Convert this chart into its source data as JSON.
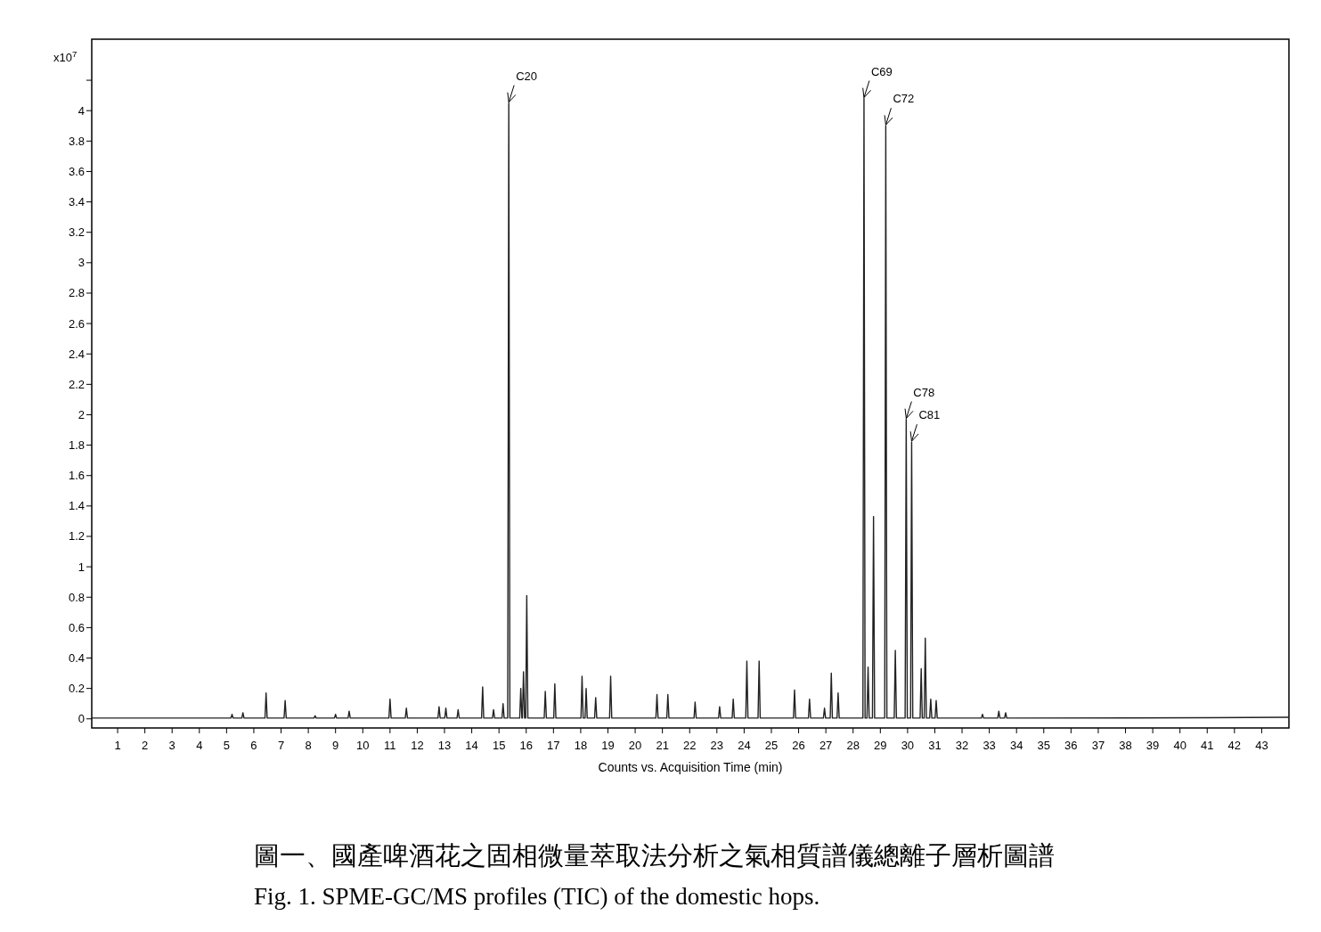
{
  "chart_data": {
    "type": "line",
    "title": "圖一、國產啤酒花之固相微量萃取法分析之氣相質譜儀總離子層析圖譜",
    "subtitle": "Fig. 1. SPME-GC/MS profiles (TIC) of the domestic hops.",
    "xlabel": "Counts vs. Acquisition Time (min)",
    "ylabel": "x10$^{7}$",
    "xlim": [
      0.05,
      44.0
    ],
    "ylim": [
      -0.06,
      4.47
    ],
    "xticks": [
      1,
      2,
      3,
      4,
      5,
      6,
      7,
      8,
      9,
      10,
      11,
      12,
      13,
      14,
      15,
      16,
      17,
      18,
      19,
      20,
      21,
      22,
      23,
      24,
      25,
      26,
      27,
      28,
      29,
      30,
      31,
      32,
      33,
      34,
      35,
      36,
      37,
      38,
      39,
      40,
      41,
      42,
      43
    ],
    "yticks": [
      0,
      0.2,
      0.4,
      0.6,
      0.8,
      1,
      1.2,
      1.4,
      1.6,
      1.8,
      2,
      2.2,
      2.4,
      2.6,
      2.8,
      3,
      3.2,
      3.4,
      3.6,
      3.8,
      4,
      {
        "value": 4.2,
        "label": null
      }
    ],
    "annotations": [
      {
        "text": "C20",
        "x": 15.36,
        "y": 4.05
      },
      {
        "text": "C69",
        "x": 28.4,
        "y": 4.08
      },
      {
        "text": "C72",
        "x": 29.2,
        "y": 3.9
      },
      {
        "text": "C78",
        "x": 29.95,
        "y": 1.97
      },
      {
        "text": "C81",
        "x": 30.15,
        "y": 1.82
      }
    ],
    "series": [
      {
        "color": "#222222",
        "x": [
          0.05,
          5.16,
          5.2,
          5.24,
          5.56,
          5.6,
          5.64,
          6.41,
          6.45,
          6.49,
          7.11,
          7.15,
          7.19,
          8.21,
          8.25,
          8.29,
          8.96,
          9.0,
          9.04,
          9.46,
          9.5,
          9.54,
          10.96,
          11.0,
          11.04,
          11.56,
          11.6,
          11.64,
          12.76,
          12.8,
          12.84,
          13.01,
          13.05,
          13.09,
          13.46,
          13.5,
          13.54,
          14.36,
          14.4,
          14.44,
          14.76,
          14.8,
          14.84,
          15.11,
          15.15,
          15.19,
          15.32,
          15.36,
          15.4,
          15.76,
          15.8,
          15.84,
          15.86,
          15.9,
          15.94,
          15.98,
          16.02,
          16.06,
          16.66,
          16.7,
          16.74,
          17.01,
          17.05,
          17.09,
          18.01,
          18.05,
          18.09,
          18.16,
          18.2,
          18.24,
          18.51,
          18.55,
          18.59,
          19.06,
          19.1,
          19.14,
          20.76,
          20.8,
          20.84,
          21.16,
          21.2,
          21.24,
          22.16,
          22.2,
          22.24,
          23.06,
          23.1,
          23.14,
          23.56,
          23.6,
          23.64,
          24.06,
          24.1,
          24.14,
          24.51,
          24.55,
          24.59,
          25.81,
          25.85,
          25.89,
          26.36,
          26.4,
          26.44,
          26.91,
          26.95,
          26.99,
          27.16,
          27.2,
          27.24,
          27.41,
          27.45,
          27.49,
          28.36,
          28.4,
          28.44,
          28.51,
          28.55,
          28.59,
          28.71,
          28.75,
          28.79,
          29.16,
          29.2,
          29.24,
          29.51,
          29.55,
          29.59,
          29.91,
          29.95,
          29.99,
          30.11,
          30.15,
          30.19,
          30.46,
          30.5,
          30.54,
          30.61,
          30.65,
          30.69,
          30.81,
          30.85,
          30.89,
          31.01,
          31.05,
          31.09,
          32.71,
          32.75,
          32.79,
          33.31,
          33.35,
          33.39,
          33.56,
          33.6,
          33.64,
          41,
          44.0
        ],
        "values": [
          0.005,
          0.005,
          0.03,
          0.005,
          0.005,
          0.04,
          0.005,
          0.005,
          0.17,
          0.005,
          0.005,
          0.12,
          0.005,
          0.005,
          0.02,
          0.005,
          0.005,
          0.03,
          0.005,
          0.005,
          0.05,
          0.005,
          0.005,
          0.13,
          0.005,
          0.005,
          0.07,
          0.005,
          0.005,
          0.08,
          0.005,
          0.005,
          0.07,
          0.005,
          0.005,
          0.06,
          0.005,
          0.005,
          0.21,
          0.005,
          0.005,
          0.06,
          0.005,
          0.005,
          0.1,
          0.005,
          0.005,
          4.05,
          0.005,
          0.005,
          0.2,
          0.005,
          0.005,
          0.31,
          0.005,
          0.005,
          0.81,
          0.005,
          0.005,
          0.18,
          0.005,
          0.005,
          0.23,
          0.005,
          0.005,
          0.28,
          0.005,
          0.005,
          0.2,
          0.005,
          0.005,
          0.14,
          0.005,
          0.005,
          0.28,
          0.005,
          0.005,
          0.16,
          0.005,
          0.005,
          0.16,
          0.005,
          0.005,
          0.11,
          0.005,
          0.005,
          0.08,
          0.005,
          0.005,
          0.13,
          0.005,
          0.005,
          0.38,
          0.005,
          0.005,
          0.38,
          0.005,
          0.005,
          0.19,
          0.005,
          0.005,
          0.13,
          0.005,
          0.005,
          0.07,
          0.005,
          0.005,
          0.3,
          0.005,
          0.005,
          0.17,
          0.005,
          0.005,
          4.08,
          0.005,
          0.005,
          0.34,
          0.005,
          0.005,
          1.33,
          0.005,
          0.005,
          3.9,
          0.005,
          0.005,
          0.45,
          0.005,
          0.005,
          1.97,
          0.005,
          0.005,
          1.82,
          0.005,
          0.005,
          0.33,
          0.005,
          0.005,
          0.53,
          0.005,
          0.005,
          0.13,
          0.005,
          0.005,
          0.12,
          0.005,
          0.005,
          0.03,
          0.005,
          0.005,
          0.05,
          0.005,
          0.005,
          0.04,
          0.005,
          0.007,
          0.01
        ]
      }
    ]
  }
}
